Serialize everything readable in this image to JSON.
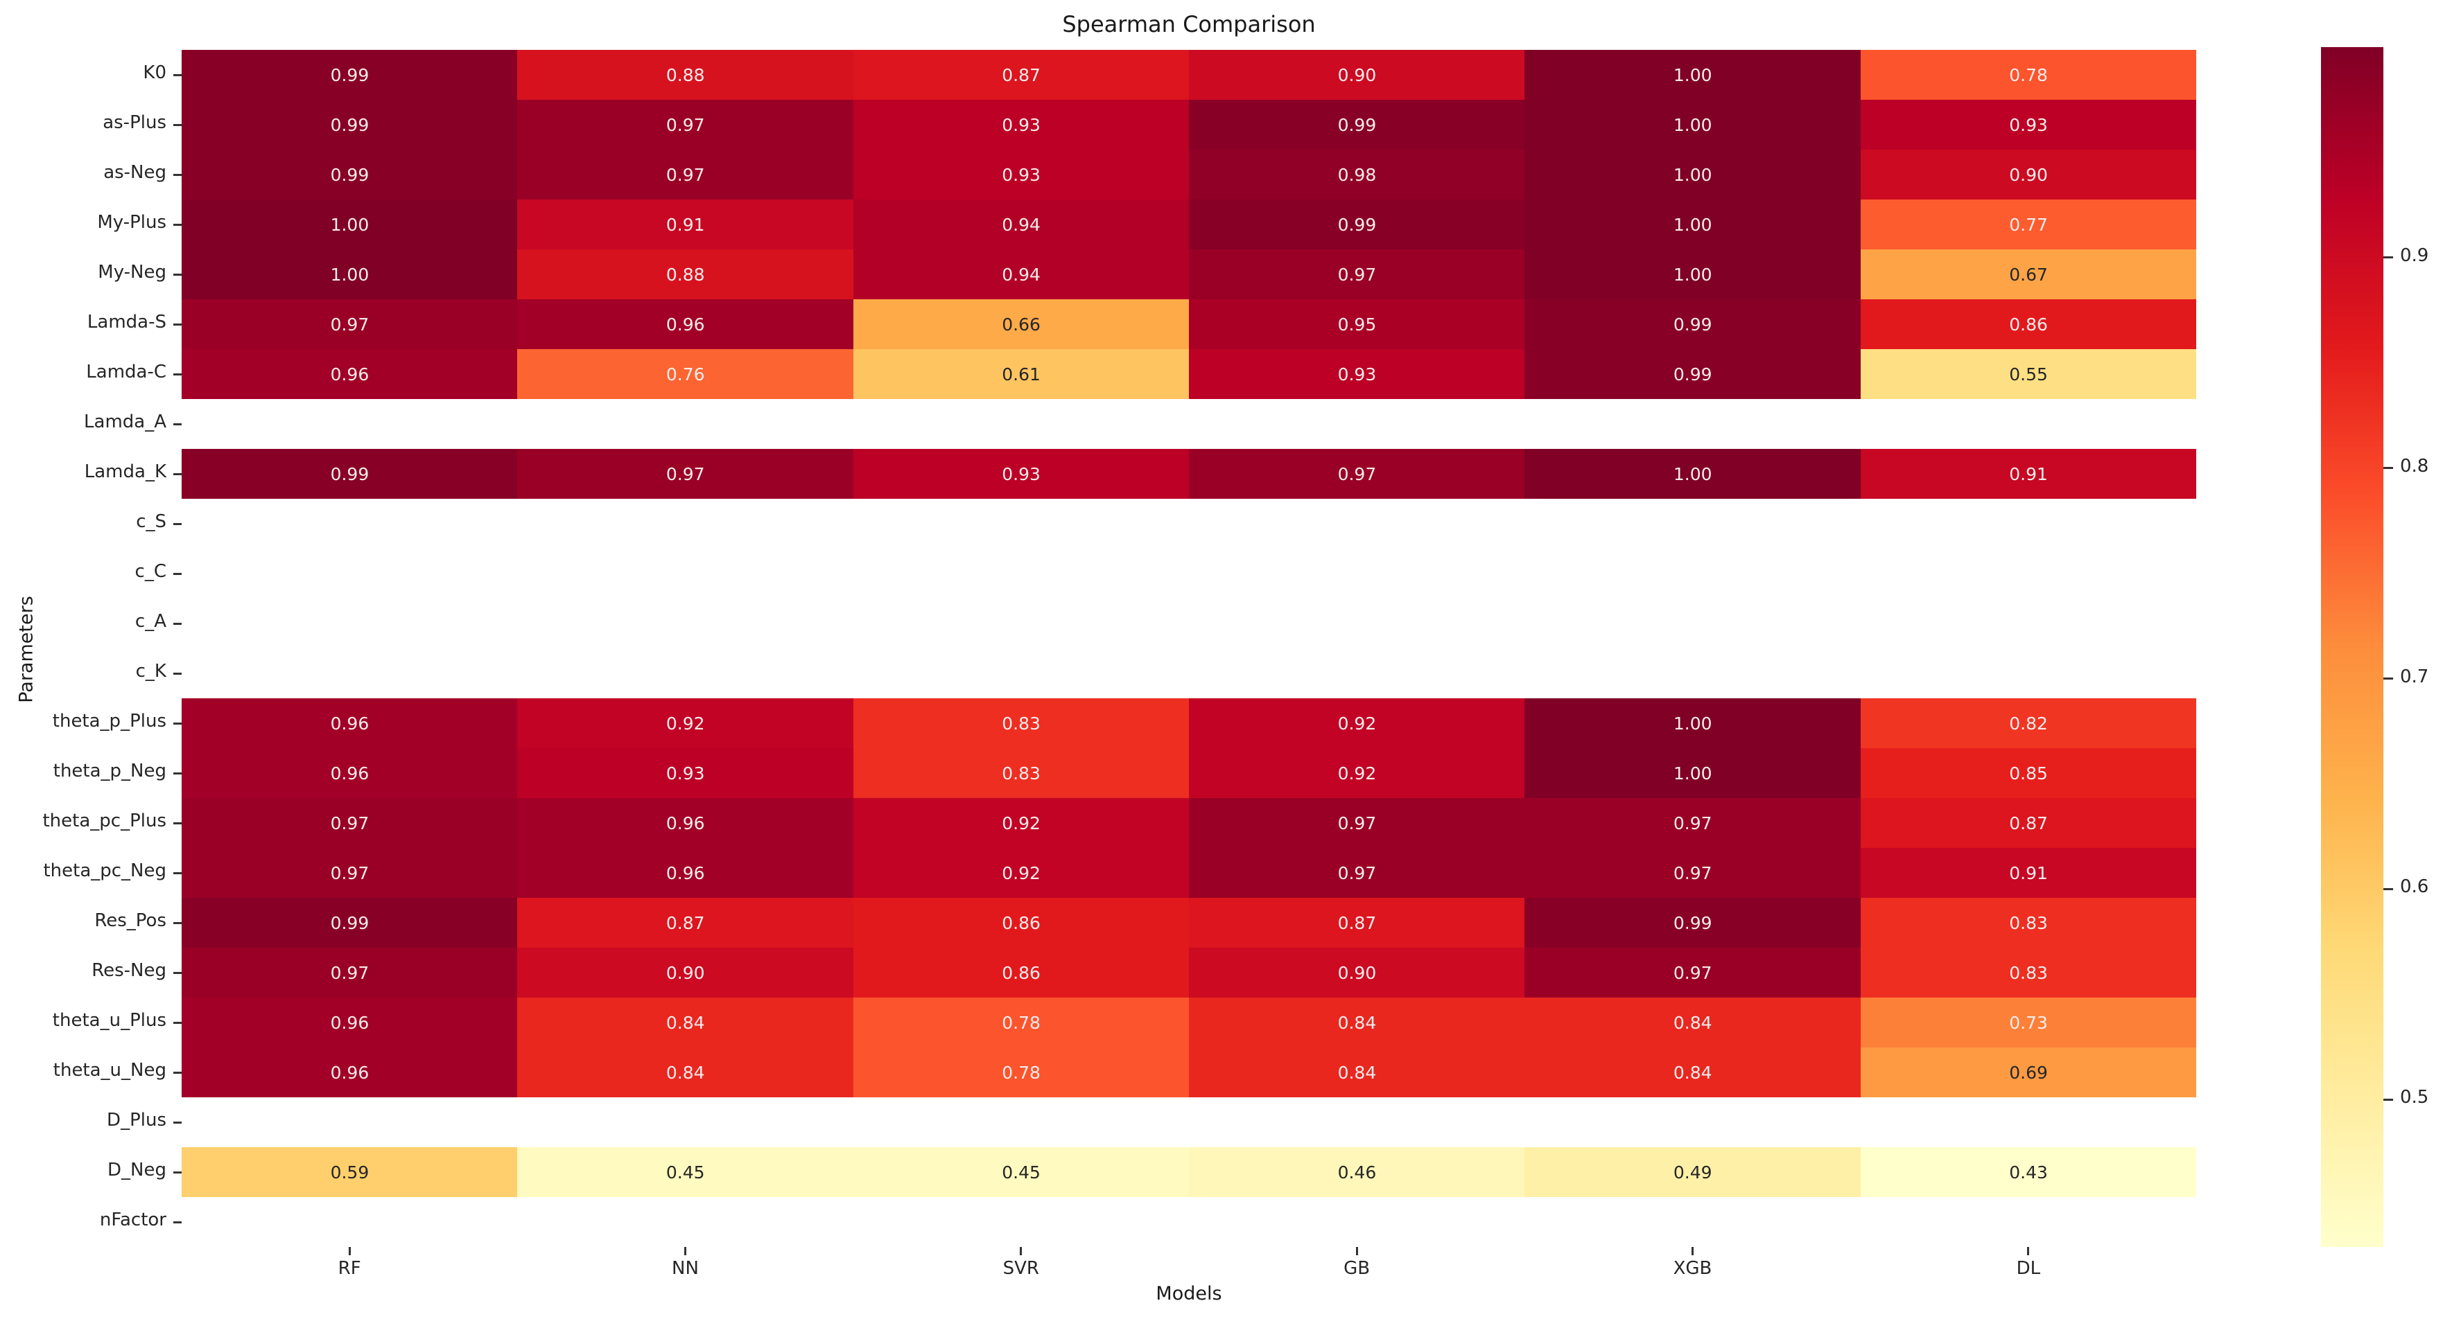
{
  "chart_data": {
    "type": "heatmap",
    "title": "Spearman Comparison",
    "xlabel": "Models",
    "ylabel": "Parameters",
    "columns": [
      "RF",
      "NN",
      "SVR",
      "GB",
      "XGB",
      "DL"
    ],
    "rows": [
      "K0",
      "as-Plus",
      "as-Neg",
      "My-Plus",
      "My-Neg",
      "Lamda-S",
      "Lamda-C",
      "Lamda_A",
      "Lamda_K",
      "c_S",
      "c_C",
      "c_A",
      "c_K",
      "theta_p_Plus",
      "theta_p_Neg",
      "theta_pc_Plus",
      "theta_pc_Neg",
      "Res_Pos",
      "Res-Neg",
      "theta_u_Plus",
      "theta_u_Neg",
      "D_Plus",
      "D_Neg",
      "nFactor"
    ],
    "values": [
      [
        0.99,
        0.88,
        0.87,
        0.9,
        1.0,
        0.78
      ],
      [
        0.99,
        0.97,
        0.93,
        0.99,
        1.0,
        0.93
      ],
      [
        0.99,
        0.97,
        0.93,
        0.98,
        1.0,
        0.9
      ],
      [
        1.0,
        0.91,
        0.94,
        0.99,
        1.0,
        0.77
      ],
      [
        1.0,
        0.88,
        0.94,
        0.97,
        1.0,
        0.67
      ],
      [
        0.97,
        0.96,
        0.66,
        0.95,
        0.99,
        0.86
      ],
      [
        0.96,
        0.76,
        0.61,
        0.93,
        0.99,
        0.55
      ],
      [
        null,
        null,
        null,
        null,
        null,
        null
      ],
      [
        0.99,
        0.97,
        0.93,
        0.97,
        1.0,
        0.91
      ],
      [
        null,
        null,
        null,
        null,
        null,
        null
      ],
      [
        null,
        null,
        null,
        null,
        null,
        null
      ],
      [
        null,
        null,
        null,
        null,
        null,
        null
      ],
      [
        null,
        null,
        null,
        null,
        null,
        null
      ],
      [
        0.96,
        0.92,
        0.83,
        0.92,
        1.0,
        0.82
      ],
      [
        0.96,
        0.93,
        0.83,
        0.92,
        1.0,
        0.85
      ],
      [
        0.97,
        0.96,
        0.92,
        0.97,
        0.97,
        0.87
      ],
      [
        0.97,
        0.96,
        0.92,
        0.97,
        0.97,
        0.91
      ],
      [
        0.99,
        0.87,
        0.86,
        0.87,
        0.99,
        0.83
      ],
      [
        0.97,
        0.9,
        0.86,
        0.9,
        0.97,
        0.83
      ],
      [
        0.96,
        0.84,
        0.78,
        0.84,
        0.84,
        0.73
      ],
      [
        0.96,
        0.84,
        0.78,
        0.84,
        0.84,
        0.69
      ],
      [
        null,
        null,
        null,
        null,
        null,
        null
      ],
      [
        0.59,
        0.45,
        0.45,
        0.46,
        0.49,
        0.43
      ],
      [
        null,
        null,
        null,
        null,
        null,
        null
      ]
    ],
    "value_format_decimals": 2,
    "vmin": 0.43,
    "vmax": 1.0,
    "colormap": {
      "name": "YlOrRd",
      "anchors": [
        "#ffffcc",
        "#ffeda0",
        "#fed976",
        "#feb24c",
        "#fd8d3c",
        "#fc4e2a",
        "#e31a1c",
        "#bd0026",
        "#800026"
      ]
    },
    "annotation_text_light": "#f7ecec",
    "annotation_text_dark": "#262626",
    "background_color": "#ffffff",
    "colorbar": {
      "position": "right",
      "ticks": [
        0.9,
        0.8,
        0.7,
        0.6,
        0.5
      ]
    },
    "grid": false
  }
}
